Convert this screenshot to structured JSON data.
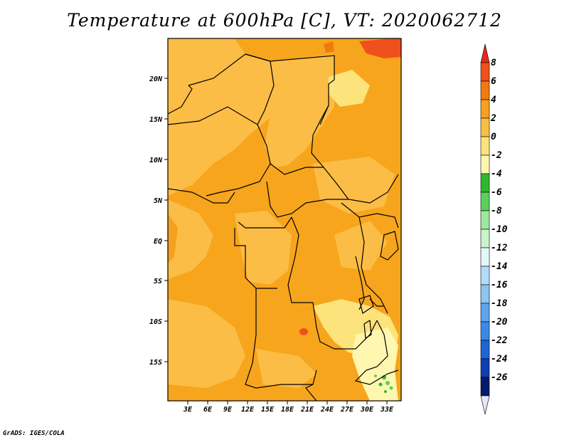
{
  "title": "Temperature at 600hPa [C], VT: 2020062712",
  "credit": "GrADS: IGES/COLA",
  "map": {
    "lat_ticks": [
      "20N",
      "15N",
      "10N",
      "5N",
      "EQ",
      "5S",
      "10S",
      "15S"
    ],
    "lon_ticks": [
      "3E",
      "6E",
      "9E",
      "12E",
      "15E",
      "18E",
      "21E",
      "24E",
      "27E",
      "30E",
      "33E"
    ]
  },
  "colorbar": {
    "labels": [
      "8",
      "6",
      "4",
      "2",
      "0",
      "-2",
      "-4",
      "-6",
      "-8",
      "-10",
      "-12",
      "-14",
      "-16",
      "-18",
      "-20",
      "-22",
      "-24",
      "-26"
    ],
    "colors": [
      "#e82a14",
      "#f0501c",
      "#f07a12",
      "#f5a01e",
      "#fabf42",
      "#fde37c",
      "#fff6b0",
      "#2eb82e",
      "#5cd05c",
      "#9ee89e",
      "#c9f3c9",
      "#e3f8fb",
      "#b4dcf7",
      "#8cc4f2",
      "#5ea4ee",
      "#3c88e6",
      "#1e64d2",
      "#0f3fb0",
      "#081a6b",
      "#e6e6f8"
    ]
  }
}
